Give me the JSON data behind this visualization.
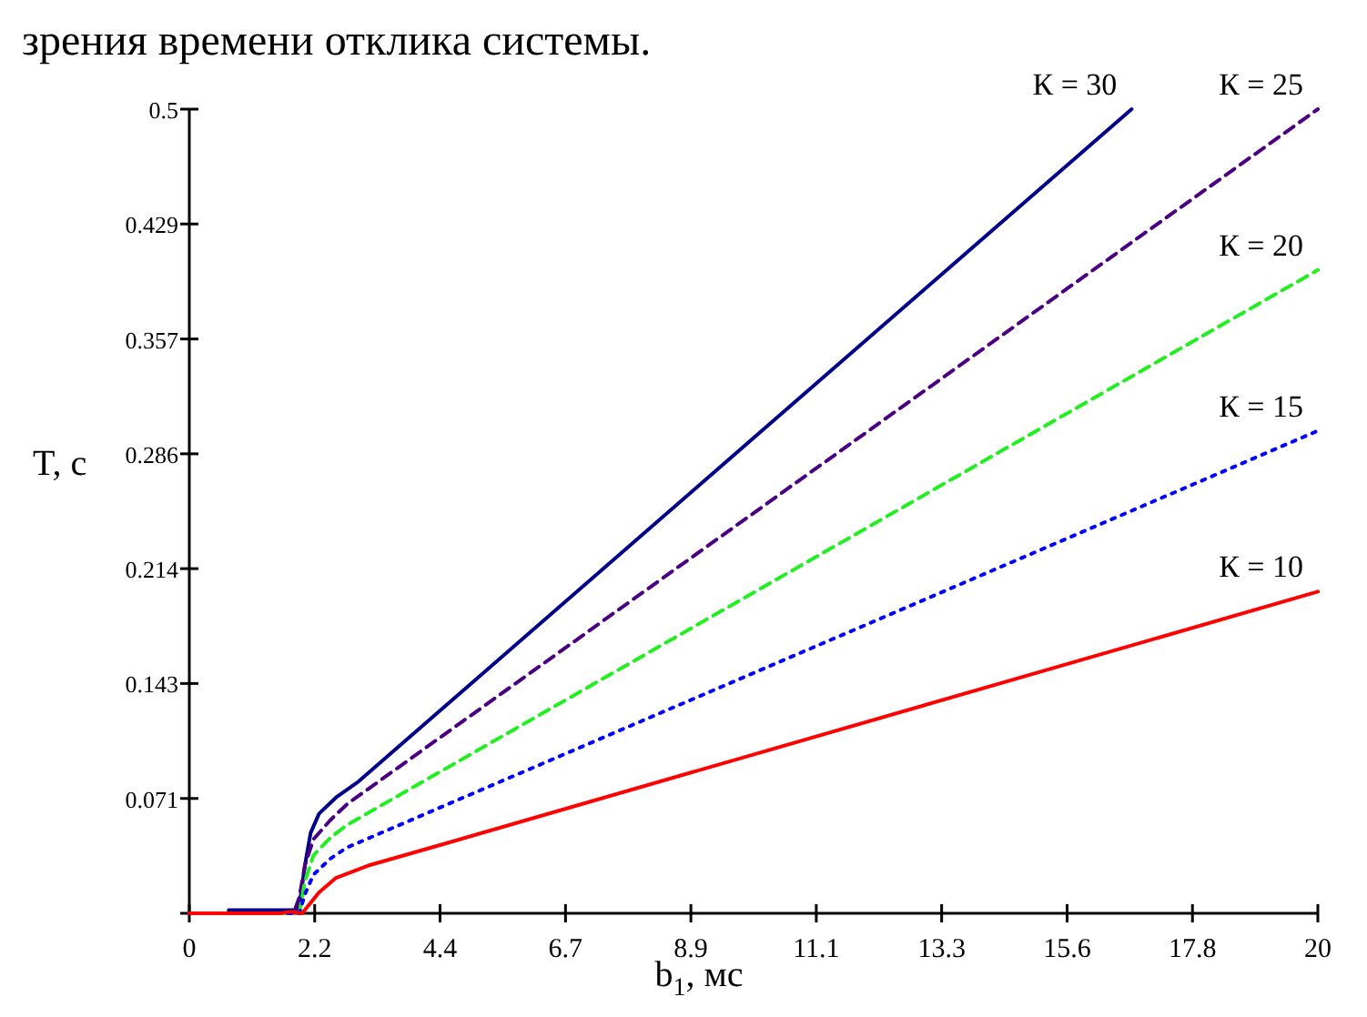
{
  "chart_data": {
    "type": "line",
    "xlabel": "b$_{1}$, мс",
    "ylabel": "T, c",
    "annotations": [
      "зрения времени отклика системы."
    ],
    "legend": false,
    "grid": false,
    "xlim": [
      0,
      20
    ],
    "ylim": [
      0,
      0.5
    ],
    "xticks": [
      0,
      {
        "value": 2.222,
        "label": "2.2"
      },
      {
        "value": 4.444,
        "label": "4.4"
      },
      {
        "value": 6.667,
        "label": "6.7"
      },
      {
        "value": 8.889,
        "label": "8.9"
      },
      {
        "value": 11.111,
        "label": "11.1"
      },
      {
        "value": 13.333,
        "label": "13.3"
      },
      {
        "value": 15.556,
        "label": "15.6"
      },
      {
        "value": 17.778,
        "label": "17.8"
      },
      20
    ],
    "yticks": [
      {
        "value": 0,
        "label": null
      },
      {
        "value": 0.0714,
        "label": "0.071"
      },
      {
        "value": 0.1429,
        "label": "0.143"
      },
      {
        "value": 0.2143,
        "label": "0.214"
      },
      {
        "value": 0.2857,
        "label": "0.286"
      },
      {
        "value": 0.3571,
        "label": "0.357"
      },
      {
        "value": 0.4286,
        "label": "0.429"
      },
      0.5
    ],
    "series": [
      {
        "name": "К = 30",
        "color": "#00008b",
        "line_style": "solid",
        "x": [
          0,
          0.7,
          0.7,
          1.9,
          1.95,
          2.05,
          2.15,
          2.3,
          2.6,
          3,
          16.7
        ],
        "values": [
          0,
          0,
          0.002,
          0.002,
          0.005,
          0.03,
          0.05,
          0.062,
          0.072,
          0.082,
          0.5
        ]
      },
      {
        "name": "К = 25",
        "color": "#4b0082",
        "line_style": "dashed",
        "x": [
          0,
          1.85,
          1.95,
          2.05,
          2.2,
          2.5,
          2.8,
          20
        ],
        "values": [
          0,
          0,
          0.01,
          0.03,
          0.046,
          0.058,
          0.068,
          0.5
        ]
      },
      {
        "name": "К = 20",
        "color": "#22ee22",
        "line_style": "dashed",
        "x": [
          0,
          1.95,
          2.05,
          2.2,
          2.5,
          2.8,
          20
        ],
        "values": [
          0,
          0,
          0.02,
          0.036,
          0.047,
          0.055,
          0.4
        ]
      },
      {
        "name": "К = 15",
        "color": "#0000ff",
        "line_style": "dotted",
        "x": [
          0,
          1.95,
          2.05,
          2.2,
          2.5,
          2.8,
          20
        ],
        "values": [
          0,
          0,
          0.012,
          0.024,
          0.034,
          0.041,
          0.3
        ]
      },
      {
        "name": "К = 10",
        "color": "#ff0000",
        "line_style": "solid",
        "x": [
          0,
          1.6,
          1.8,
          2,
          2.3,
          2.6,
          3.2,
          4.4,
          20
        ],
        "values": [
          0,
          0,
          0.001,
          0,
          0.013,
          0.022,
          0.03,
          0.042,
          0.2
        ]
      }
    ]
  }
}
